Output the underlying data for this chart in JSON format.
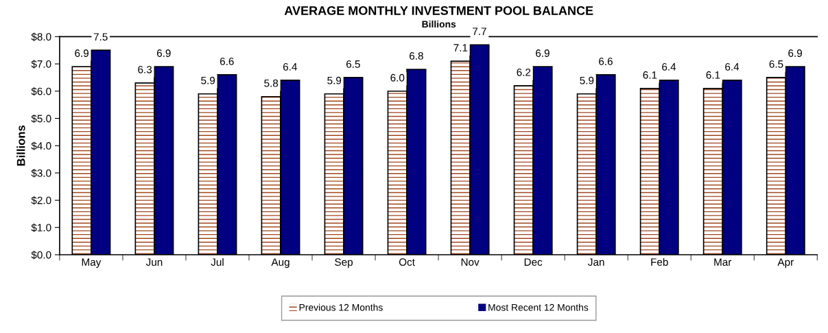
{
  "chart_data": {
    "type": "bar",
    "title": "AVERAGE MONTHLY INVESTMENT POOL BALANCE",
    "subtitle": "Billions",
    "ylabel": "Billions",
    "categories": [
      "May",
      "Jun",
      "Jul",
      "Aug",
      "Sep",
      "Oct",
      "Nov",
      "Dec",
      "Jan",
      "Feb",
      "Mar",
      "Apr"
    ],
    "series": [
      {
        "name": "Previous 12 Months",
        "color": "#a0461e",
        "values": [
          6.9,
          6.3,
          5.9,
          5.8,
          5.9,
          6.0,
          7.1,
          6.2,
          5.9,
          6.1,
          6.1,
          6.5
        ],
        "value_labels": [
          "6.9",
          "6.3",
          "5.9",
          "5.8",
          "5.9",
          "6.0",
          "7.1",
          "6.2",
          "5.9",
          "6.1",
          "6.1",
          "6.5"
        ]
      },
      {
        "name": "Most Recent 12 Months",
        "color": "#000080",
        "values": [
          7.5,
          6.9,
          6.6,
          6.4,
          6.5,
          6.8,
          7.7,
          6.9,
          6.6,
          6.4,
          6.4,
          6.9
        ],
        "value_labels": [
          "7.5",
          "6.9",
          "6.6",
          "6.4",
          "6.5",
          "6.8",
          "7.7",
          "6.9",
          "6.6",
          "6.4",
          "6.4",
          "6.9"
        ]
      }
    ],
    "ylim": [
      0,
      8
    ],
    "yticks": [
      {
        "value": 0,
        "label": "$0.0"
      },
      {
        "value": 1,
        "label": "$1.0"
      },
      {
        "value": 2,
        "label": "$2.0"
      },
      {
        "value": 3,
        "label": "$3.0"
      },
      {
        "value": 4,
        "label": "$4.0"
      },
      {
        "value": 5,
        "label": "$5.0"
      },
      {
        "value": 6,
        "label": "$6.0"
      },
      {
        "value": 7,
        "label": "$7.0"
      },
      {
        "value": 8,
        "label": "$8.0"
      }
    ],
    "grid": false,
    "legend": "bottom"
  }
}
